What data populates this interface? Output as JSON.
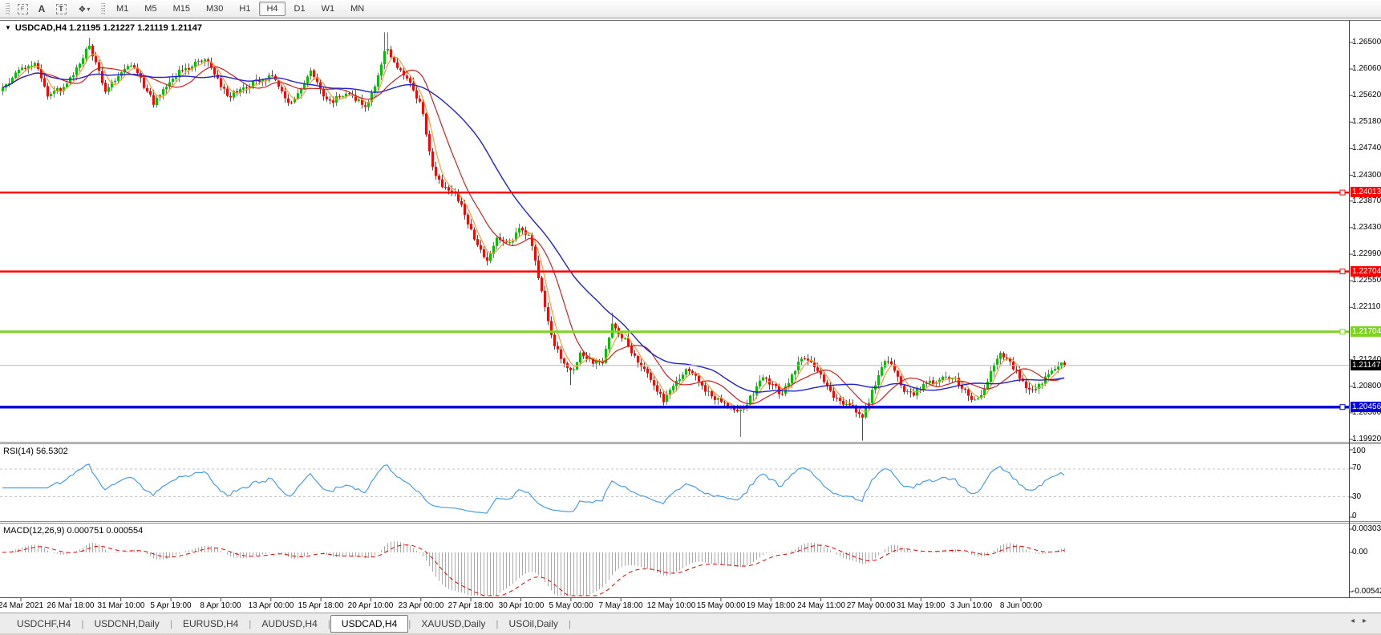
{
  "toolbar": {
    "tools": [
      {
        "name": "chart-frame-tool",
        "glyph": "F"
      },
      {
        "name": "text-tool",
        "glyph": "A"
      },
      {
        "name": "text-label-tool",
        "glyph": "T"
      },
      {
        "name": "arrows-tool",
        "glyph": "❖"
      }
    ],
    "dropdown_caret": "▾",
    "timeframes": [
      "M1",
      "M5",
      "M15",
      "M30",
      "H1",
      "H4",
      "D1",
      "W1",
      "MN"
    ],
    "active_timeframe": "H4"
  },
  "chart": {
    "dropdown_glyph": "▼",
    "symbol": "USDCAD,H4",
    "ohlc_text": "1.21195 1.21227 1.21119 1.21147",
    "price_ticks": [
      {
        "label": "1.26500",
        "price": 1.265
      },
      {
        "label": "1.26060",
        "price": 1.2606
      },
      {
        "label": "1.25620",
        "price": 1.2562
      },
      {
        "label": "1.25180",
        "price": 1.2518
      },
      {
        "label": "1.24740",
        "price": 1.2474
      },
      {
        "label": "1.24300",
        "price": 1.243
      },
      {
        "label": "1.23870",
        "price": 1.2387
      },
      {
        "label": "1.23430",
        "price": 1.2343
      },
      {
        "label": "1.22990",
        "price": 1.2299
      },
      {
        "label": "1.22550",
        "price": 1.2255
      },
      {
        "label": "1.22110",
        "price": 1.2211
      },
      {
        "label": "1.21240",
        "price": 1.2124
      },
      {
        "label": "1.20800",
        "price": 1.208
      },
      {
        "label": "1.20360",
        "price": 1.2036
      },
      {
        "label": "1.19920",
        "price": 1.1992
      }
    ],
    "lines": [
      {
        "name": "resistance-upper",
        "label": "1.24013",
        "price": 1.24013,
        "color": "#ff0000",
        "label_bg": "#ff0000",
        "width": 2.5,
        "marker": true
      },
      {
        "name": "resistance-lower",
        "label": "1.22704",
        "price": 1.22704,
        "color": "#ff0000",
        "label_bg": "#ff0000",
        "width": 2.5,
        "marker": true
      },
      {
        "name": "support-green",
        "label": "1.21704",
        "price": 1.21704,
        "color": "#7cd421",
        "label_bg": "#7cd421",
        "width": 3,
        "marker": true
      },
      {
        "name": "bid-price",
        "label": "1.21147",
        "price": 1.21147,
        "color": "#b8b8b8",
        "label_bg": "#000000",
        "width": 1,
        "marker": false
      },
      {
        "name": "support-blue",
        "label": "1.20456",
        "price": 1.20456,
        "color": "#0000dc",
        "label_bg": "#0000dc",
        "width": 3.5,
        "marker": true
      }
    ],
    "time_labels": [
      "24 Mar 2021",
      "26 Mar 18:00",
      "31 Mar 10:00",
      "5 Apr 19:00",
      "8 Apr 10:00",
      "13 Apr 00:00",
      "15 Apr 18:00",
      "20 Apr 10:00",
      "23 Apr 00:00",
      "27 Apr 18:00",
      "30 Apr 10:00",
      "5 May 00:00",
      "7 May 18:00",
      "12 May 10:00",
      "15 May 00:00",
      "19 May 18:00",
      "24 May 11:00",
      "27 May 00:00",
      "31 May 19:00",
      "3 Jun 10:00",
      "8 Jun 00:00"
    ]
  },
  "indicators": {
    "rsi": {
      "label": "RSI(14) 56.5302",
      "levels": [
        "100",
        "70",
        "30",
        "0"
      ]
    },
    "macd": {
      "label": "MACD(12,26,9) 0.000751 0.000554",
      "scale": [
        "0.003035",
        "0.00",
        "-0.00542"
      ]
    }
  },
  "tabs": {
    "items": [
      "USDCHF,H4",
      "USDCNH,Daily",
      "EURUSD,H4",
      "AUDUSD,H4",
      "USDCAD,H4",
      "XAUUSD,Daily",
      "USOil,Daily"
    ],
    "active": "USDCAD,H4",
    "scroll_left_glyph": "◂",
    "scroll_right_glyph": "▸"
  },
  "chart_data": {
    "type": "candlestick",
    "symbol": "USDCAD",
    "timeframe": "H4",
    "current_ohlc": {
      "open": 1.21195,
      "high": 1.21227,
      "low": 1.21119,
      "close": 1.21147
    },
    "y_range": [
      1.1992,
      1.265
    ],
    "horizontal_levels": [
      1.24013,
      1.22704,
      1.21704,
      1.21147,
      1.20456
    ],
    "rsi_current": 56.5302,
    "macd_current": [
      0.000751,
      0.000554
    ],
    "macd_scale_range": [
      -0.00542,
      0.003035
    ],
    "seed": 987123,
    "x_max": 1328,
    "last_candle": [
      1.21195,
      1.21227,
      1.21119,
      1.21147
    ],
    "colors": {
      "bull": "#00c000",
      "bear": "#ff0000",
      "ma_fast": "#ff9933",
      "ma_mid": "#cc2222",
      "ma_slow": "#2222cc",
      "rsi": "#4a9ce8",
      "macd_hist": "#a9a9a9",
      "macd_signal": "#e00000"
    },
    "price_path": [
      [
        0,
        1.257
      ],
      [
        22,
        1.26
      ],
      [
        44,
        1.2618
      ],
      [
        60,
        1.256
      ],
      [
        82,
        1.258
      ],
      [
        100,
        1.262
      ],
      [
        110,
        1.2645
      ],
      [
        131,
        1.257
      ],
      [
        164,
        1.2615
      ],
      [
        191,
        1.255
      ],
      [
        223,
        1.26
      ],
      [
        256,
        1.2625
      ],
      [
        283,
        1.256
      ],
      [
        311,
        1.258
      ],
      [
        338,
        1.2595
      ],
      [
        360,
        1.2545
      ],
      [
        387,
        1.26
      ],
      [
        409,
        1.255
      ],
      [
        431,
        1.2565
      ],
      [
        458,
        1.2545
      ],
      [
        472,
        1.2595
      ],
      [
        481,
        1.265
      ],
      [
        492,
        1.261
      ],
      [
        510,
        1.2585
      ],
      [
        525,
        1.2545
      ],
      [
        538,
        1.2445
      ],
      [
        552,
        1.2408
      ],
      [
        568,
        1.24
      ],
      [
        583,
        1.2352
      ],
      [
        597,
        1.2306
      ],
      [
        607,
        1.2286
      ],
      [
        620,
        1.2325
      ],
      [
        633,
        1.2312
      ],
      [
        648,
        1.234
      ],
      [
        660,
        1.2326
      ],
      [
        673,
        1.2252
      ],
      [
        687,
        1.2162
      ],
      [
        700,
        1.2122
      ],
      [
        712,
        1.2102
      ],
      [
        724,
        1.2136
      ],
      [
        737,
        1.2122
      ],
      [
        750,
        1.2116
      ],
      [
        763,
        1.218
      ],
      [
        776,
        1.2162
      ],
      [
        790,
        1.2132
      ],
      [
        803,
        1.2106
      ],
      [
        815,
        1.2082
      ],
      [
        828,
        1.2056
      ],
      [
        840,
        1.208
      ],
      [
        855,
        1.2112
      ],
      [
        868,
        1.2092
      ],
      [
        880,
        1.2072
      ],
      [
        895,
        1.2056
      ],
      [
        910,
        1.2042
      ],
      [
        922,
        1.2036
      ],
      [
        935,
        1.2062
      ],
      [
        950,
        1.2092
      ],
      [
        963,
        1.2082
      ],
      [
        975,
        1.2066
      ],
      [
        988,
        1.2102
      ],
      [
        1000,
        1.2132
      ],
      [
        1012,
        1.2122
      ],
      [
        1025,
        1.2092
      ],
      [
        1038,
        1.2066
      ],
      [
        1050,
        1.2052
      ],
      [
        1062,
        1.2046
      ],
      [
        1075,
        1.2032
      ],
      [
        1085,
        1.2062
      ],
      [
        1095,
        1.2102
      ],
      [
        1105,
        1.2126
      ],
      [
        1115,
        1.2106
      ],
      [
        1125,
        1.2076
      ],
      [
        1138,
        1.2066
      ],
      [
        1150,
        1.2082
      ],
      [
        1163,
        1.2086
      ],
      [
        1175,
        1.2092
      ],
      [
        1188,
        1.2096
      ],
      [
        1200,
        1.2076
      ],
      [
        1213,
        1.2056
      ],
      [
        1223,
        1.2062
      ],
      [
        1235,
        1.2106
      ],
      [
        1247,
        1.2132
      ],
      [
        1258,
        1.2122
      ],
      [
        1270,
        1.2096
      ],
      [
        1282,
        1.2072
      ],
      [
        1295,
        1.2082
      ],
      [
        1308,
        1.2102
      ],
      [
        1320,
        1.2112
      ],
      [
        1328,
        1.21147
      ]
    ],
    "spikes": [
      [
        110,
        1.2658
      ],
      [
        481,
        1.2667
      ],
      [
        712,
        1.2082
      ],
      [
        763,
        1.2202
      ],
      [
        922,
        1.1996
      ],
      [
        1075,
        1.199
      ]
    ]
  }
}
